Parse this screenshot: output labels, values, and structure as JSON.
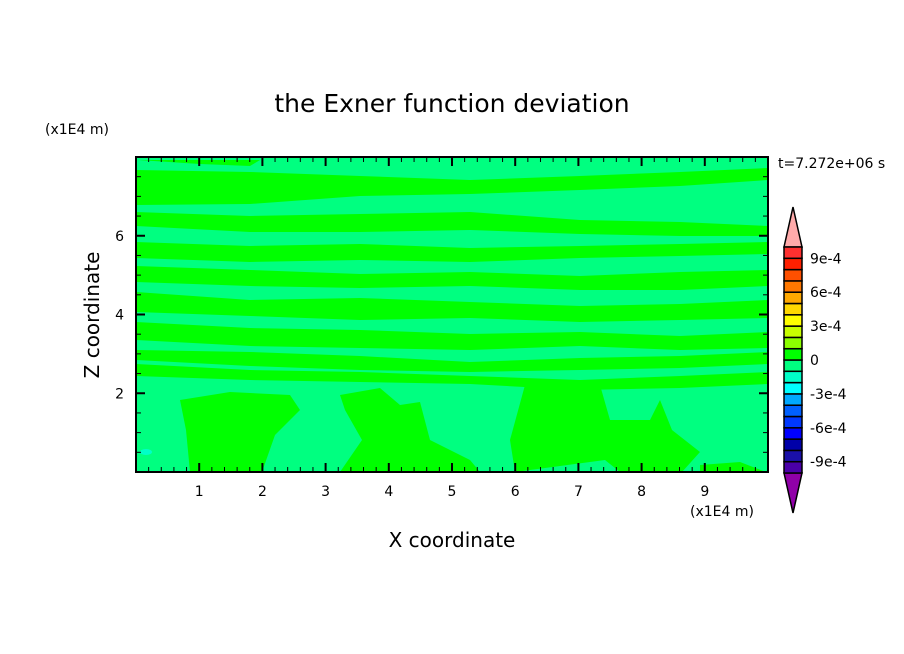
{
  "chart_data": {
    "type": "heatmap",
    "title": "the Exner function deviation",
    "xlabel": "X coordinate",
    "ylabel": "Z coordinate",
    "x_unit": "(x1E4 m)",
    "y_unit": "(x1E4 m)",
    "time_label": "t=7.272e+06 s",
    "xlim": [
      0,
      10
    ],
    "ylim": [
      0,
      8
    ],
    "x_ticks": [
      1,
      2,
      3,
      4,
      5,
      6,
      7,
      8,
      9
    ],
    "y_ticks": [
      2,
      4,
      6
    ],
    "colorbar": {
      "levels": [
        -0.001,
        -0.0009,
        -0.0008,
        -0.0007,
        -0.0006,
        -0.0005,
        -0.0004,
        -0.0003,
        -0.0002,
        -0.0001,
        0,
        0.0001,
        0.0002,
        0.0003,
        0.0004,
        0.0005,
        0.0006,
        0.0007,
        0.0008,
        0.0009,
        0.001
      ],
      "tick_labels": [
        {
          "value": 0.0009,
          "label": "9e-4"
        },
        {
          "value": 0.0006,
          "label": "6e-4"
        },
        {
          "value": 0.0003,
          "label": "3e-4"
        },
        {
          "value": 0,
          "label": "0"
        },
        {
          "value": -0.0003,
          "label": "-3e-4"
        },
        {
          "value": -0.0006,
          "label": "-6e-4"
        },
        {
          "value": -0.0009,
          "label": "-9e-4"
        }
      ],
      "colors_low_to_high": [
        "#4a00a8",
        "#1a10a8",
        "#0000a8",
        "#0000ff",
        "#0038ff",
        "#0060ff",
        "#00a8ff",
        "#00ffff",
        "#00ffc8",
        "#00ff80",
        "#00ff00",
        "#8cff00",
        "#c8ff00",
        "#ffff00",
        "#ffd800",
        "#ffa800",
        "#ff7800",
        "#ff5000",
        "#ff2000",
        "#ff3030"
      ],
      "over_color": "#ffaaaa",
      "under_color": "#9000a8"
    },
    "field_summary": {
      "dominant_ranges": [
        "-1e-4 to 0 (#00ff80)",
        "0 to 1e-4 (#00ff00)"
      ],
      "pattern": "horizontal banded layers above z=2.5, vertical blobs below z=2.5"
    }
  }
}
